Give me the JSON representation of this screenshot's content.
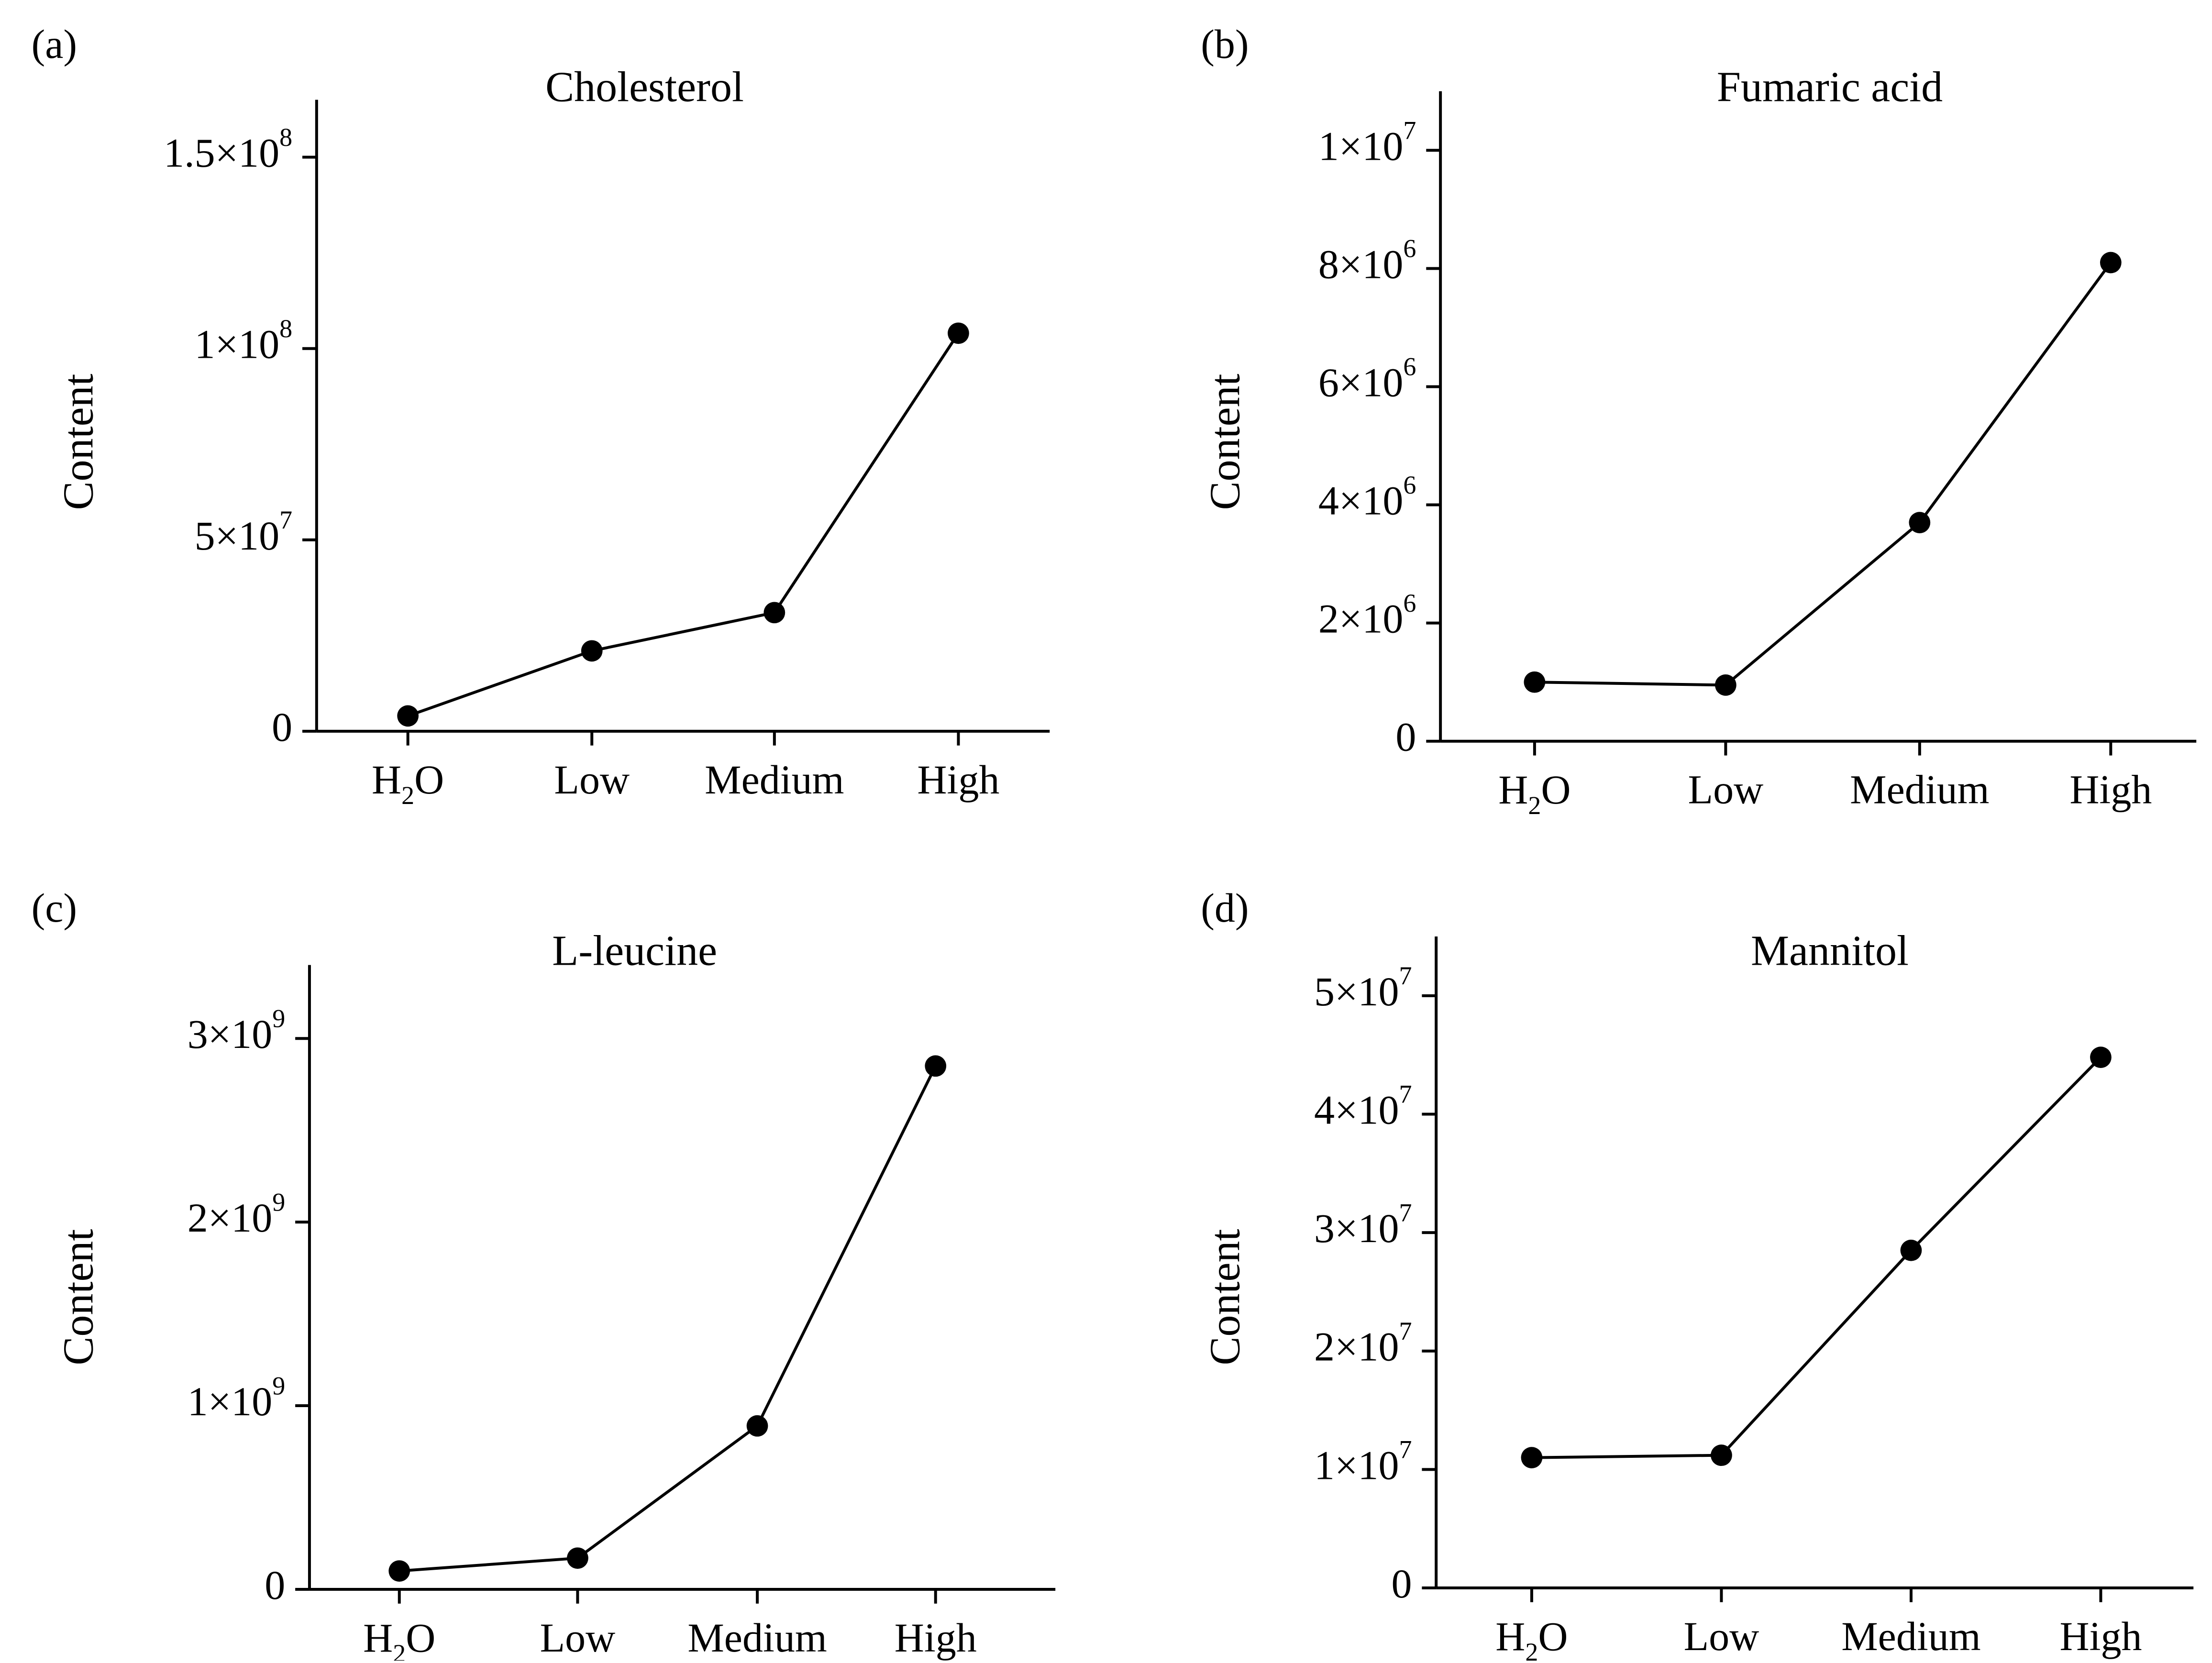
{
  "chart_data": [
    {
      "type": "line",
      "panel_label": "(a)",
      "title": "Cholesterol",
      "xlabel": "",
      "ylabel": "Content",
      "categories": [
        "H2O",
        "Low",
        "Medium",
        "High"
      ],
      "values": [
        4000000,
        21000000,
        31000000,
        104000000
      ],
      "ylim": [
        0,
        165000000
      ],
      "yticks": [
        {
          "value": 0,
          "mantissa": "0",
          "exponent": ""
        },
        {
          "value": 50000000,
          "mantissa": "5×10",
          "exponent": "7"
        },
        {
          "value": 100000000,
          "mantissa": "1×10",
          "exponent": "8"
        },
        {
          "value": 150000000,
          "mantissa": "1.5×10",
          "exponent": "8"
        }
      ],
      "grid": false,
      "legend": "none",
      "color": "#000000"
    },
    {
      "type": "line",
      "panel_label": "(b)",
      "title": "Fumaric acid",
      "xlabel": "",
      "ylabel": "Content",
      "categories": [
        "H2O",
        "Low",
        "Medium",
        "High"
      ],
      "values": [
        1000000,
        950000,
        3700000,
        8100000
      ],
      "ylim": [
        0,
        11000000
      ],
      "yticks": [
        {
          "value": 0,
          "mantissa": "0",
          "exponent": ""
        },
        {
          "value": 2000000,
          "mantissa": "2×10",
          "exponent": "6"
        },
        {
          "value": 4000000,
          "mantissa": "4×10",
          "exponent": "6"
        },
        {
          "value": 6000000,
          "mantissa": "6×10",
          "exponent": "6"
        },
        {
          "value": 8000000,
          "mantissa": "8×10",
          "exponent": "6"
        },
        {
          "value": 10000000,
          "mantissa": "1×10",
          "exponent": "7"
        }
      ],
      "grid": false,
      "legend": "none",
      "color": "#000000"
    },
    {
      "type": "line",
      "panel_label": "(c)",
      "title": "L-leucine",
      "xlabel": "",
      "ylabel": "Content",
      "categories": [
        "H2O",
        "Low",
        "Medium",
        "High"
      ],
      "values": [
        100000000,
        170000000,
        890000000,
        2850000000
      ],
      "ylim": [
        0,
        3400000000
      ],
      "yticks": [
        {
          "value": 0,
          "mantissa": "0",
          "exponent": ""
        },
        {
          "value": 1000000000,
          "mantissa": "1×10",
          "exponent": "9"
        },
        {
          "value": 2000000000,
          "mantissa": "2×10",
          "exponent": "9"
        },
        {
          "value": 3000000000,
          "mantissa": "3×10",
          "exponent": "9"
        }
      ],
      "grid": false,
      "legend": "none",
      "color": "#000000"
    },
    {
      "type": "line",
      "panel_label": "(d)",
      "title": "Mannitol",
      "xlabel": "",
      "ylabel": "Content",
      "categories": [
        "H2O",
        "Low",
        "Medium",
        "High"
      ],
      "values": [
        11000000,
        11200000,
        28500000,
        44800000
      ],
      "ylim": [
        0,
        55000000
      ],
      "yticks": [
        {
          "value": 0,
          "mantissa": "0",
          "exponent": ""
        },
        {
          "value": 10000000,
          "mantissa": "1×10",
          "exponent": "7"
        },
        {
          "value": 20000000,
          "mantissa": "2×10",
          "exponent": "7"
        },
        {
          "value": 30000000,
          "mantissa": "3×10",
          "exponent": "7"
        },
        {
          "value": 40000000,
          "mantissa": "4×10",
          "exponent": "7"
        },
        {
          "value": 50000000,
          "mantissa": "5×10",
          "exponent": "7"
        }
      ],
      "grid": false,
      "legend": "none",
      "color": "#000000"
    }
  ]
}
